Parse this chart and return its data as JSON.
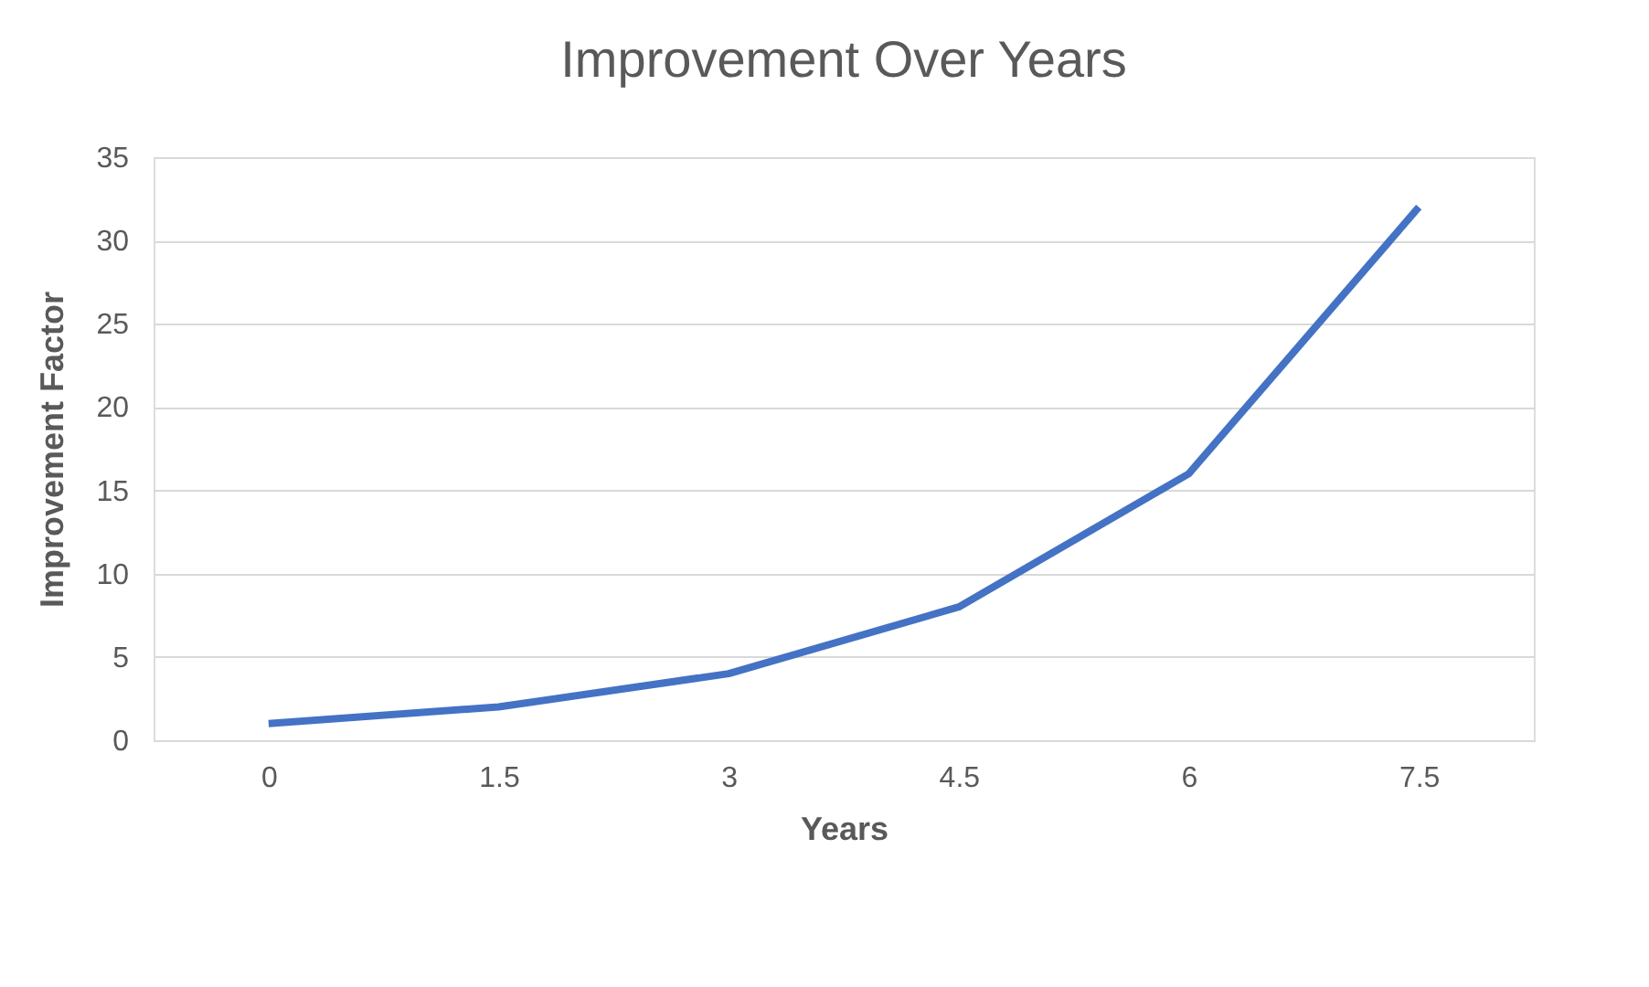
{
  "chart_data": {
    "type": "line",
    "title": "Improvement Over Years",
    "xlabel": "Years",
    "ylabel": "Improvement Factor",
    "categories": [
      "0",
      "1.5",
      "3",
      "4.5",
      "6",
      "7.5"
    ],
    "series": [
      {
        "color": "#4472c4",
        "values": [
          1,
          2,
          4,
          8,
          16,
          32
        ]
      }
    ],
    "ylim": [
      0,
      35
    ],
    "yticks": [
      0,
      5,
      10,
      15,
      20,
      25,
      30,
      35
    ],
    "grid": "y",
    "legend": false,
    "marker": "none",
    "line_style": "solid"
  }
}
